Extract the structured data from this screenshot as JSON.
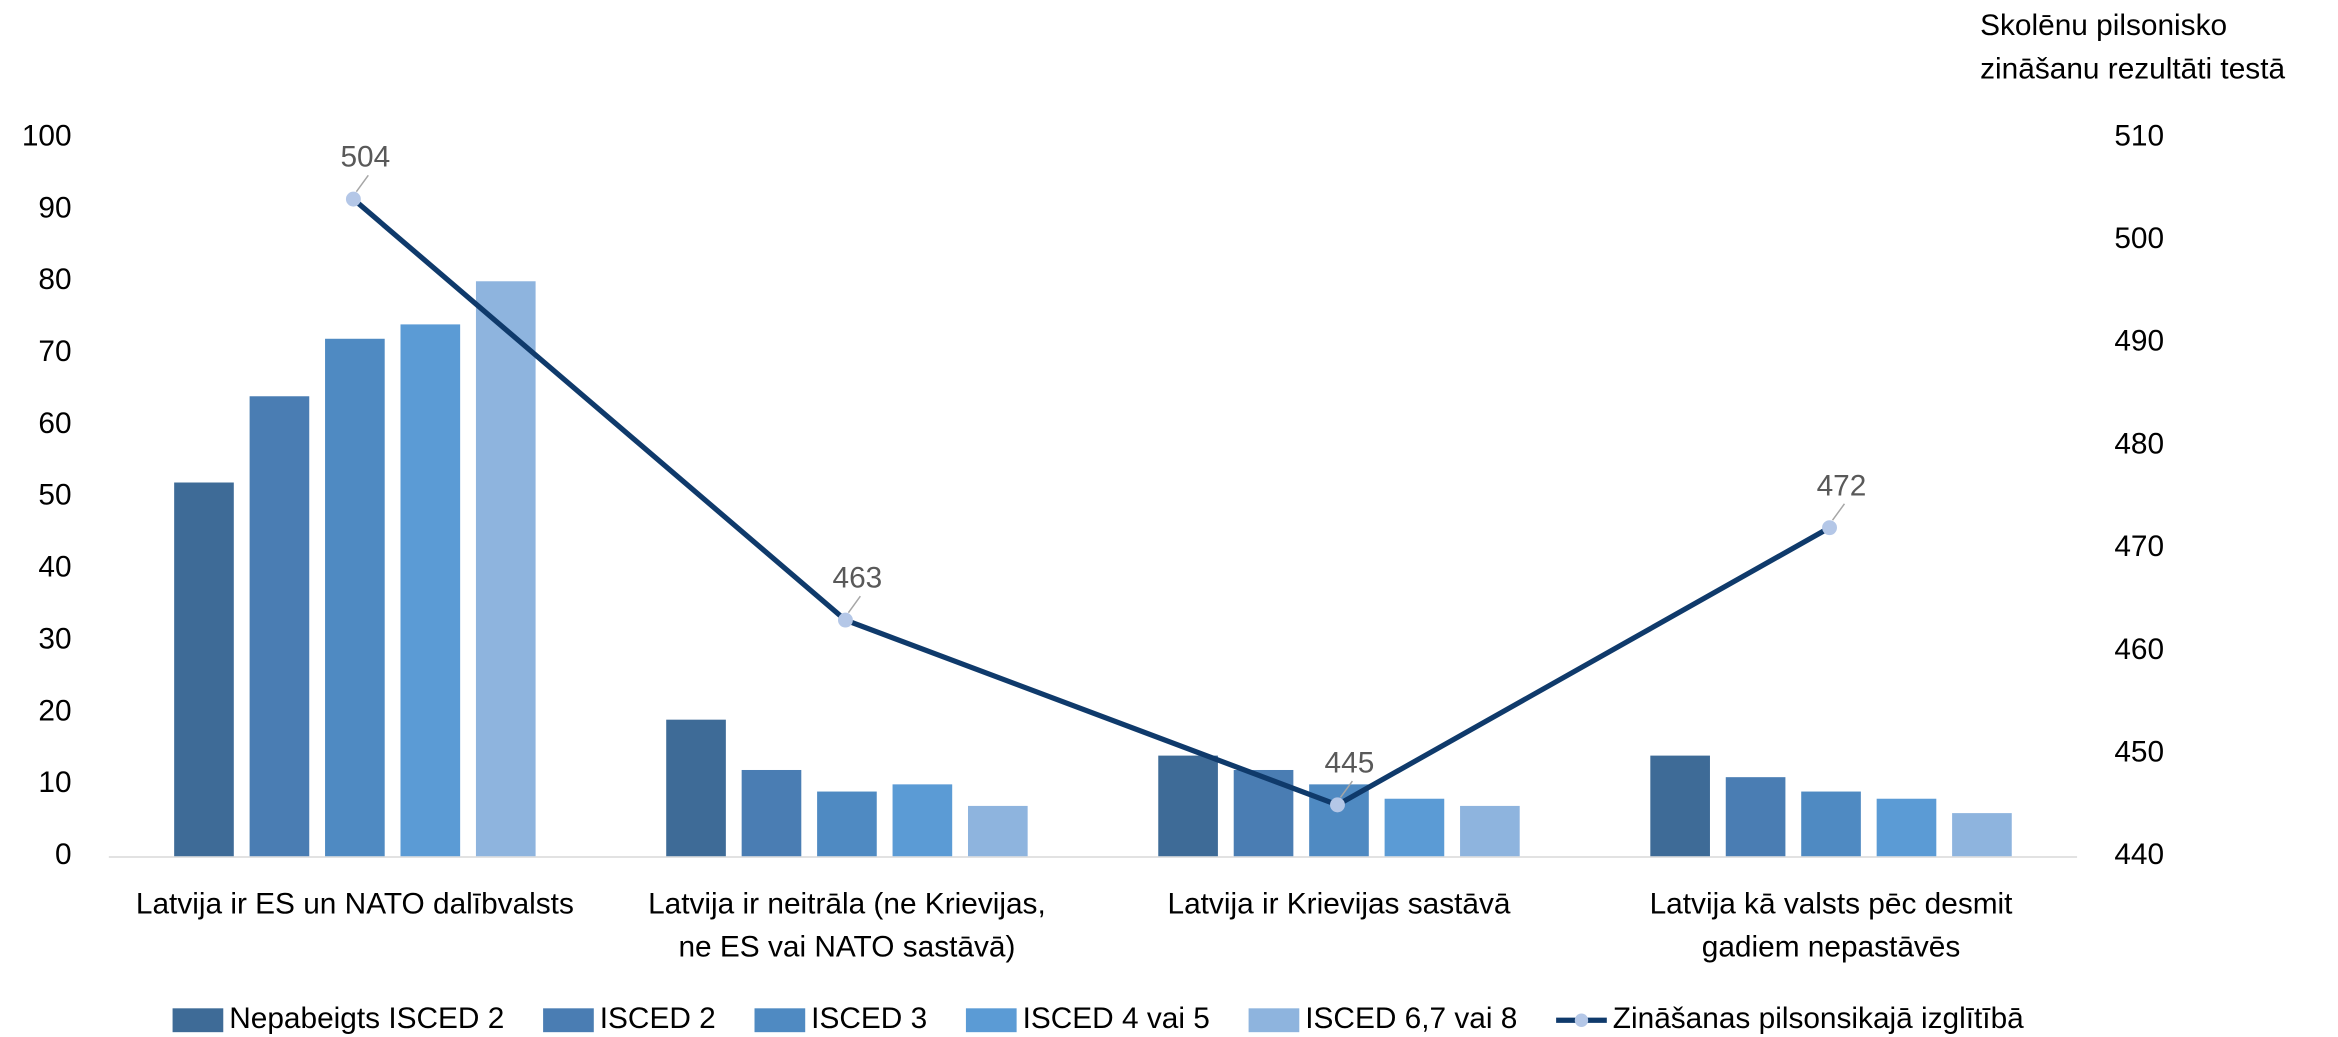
{
  "chart_data": {
    "type": "bar",
    "categories": [
      [
        "Latvija ir ES un NATO dalībvalsts"
      ],
      [
        "Latvija ir neitrāla (ne Krievijas,",
        "ne ES vai NATO sastāvā)"
      ],
      [
        "Latvija ir Krievijas sastāvā"
      ],
      [
        "Latvija kā valsts pēc desmit",
        "gadiem nepastāvēs"
      ]
    ],
    "series": [
      {
        "name": "Nepabeigts ISCED 2",
        "color": "#3e6b97",
        "values": [
          52,
          19,
          14,
          14
        ]
      },
      {
        "name": "ISCED 2",
        "color": "#4a7db3",
        "values": [
          64,
          12,
          12,
          11
        ]
      },
      {
        "name": "ISCED 3",
        "color": "#4f8ac2",
        "values": [
          72,
          9,
          10,
          9
        ]
      },
      {
        "name": "ISCED 4 vai 5",
        "color": "#5b9bd5",
        "values": [
          74,
          10,
          8,
          8
        ]
      },
      {
        "name": "ISCED 6,7 vai 8",
        "color": "#8eb4de",
        "values": [
          80,
          7,
          7,
          6
        ]
      },
      {
        "name": "Zināšanas pilsonsikajā izglītībā",
        "type": "line",
        "axis": "y2",
        "color": "#0f3a6b",
        "marker_color": "#b4c7e7",
        "values": [
          504,
          463,
          445,
          472
        ],
        "value_labels": [
          "504",
          "463",
          "445",
          "472"
        ]
      }
    ],
    "y2_label": [
      "Skolēnu pilsonisko",
      "zināšanu rezultāti testā"
    ],
    "ylim": [
      0,
      100
    ],
    "yticks": [
      0,
      10,
      20,
      30,
      40,
      50,
      60,
      70,
      80,
      90,
      100
    ],
    "y2lim": [
      440,
      510
    ],
    "y2ticks": [
      440,
      450,
      460,
      470,
      480,
      490,
      500,
      510
    ],
    "legend": "bottom",
    "grid": false
  }
}
